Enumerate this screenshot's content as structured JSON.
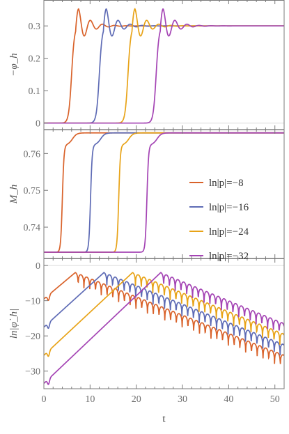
{
  "chart_data": [
    {
      "type": "line",
      "panel": "top",
      "ylabel": "−φ_h",
      "xlim": [
        0,
        52
      ],
      "ylim": [
        -0.02,
        0.38
      ],
      "yticks": [
        "0",
        "0.1",
        "0.2",
        "0.3"
      ],
      "ytick_values": [
        0,
        0.1,
        0.2,
        0.3
      ],
      "final_value": 0.3,
      "peak_value": 0.355,
      "series": [
        {
          "name": "ln|p|=−8",
          "transition_t": 6.0,
          "peak_t": 7.5,
          "color": "#d9622a"
        },
        {
          "name": "ln|p|=−16",
          "transition_t": 12.0,
          "peak_t": 13.5,
          "color": "#5e6bb5"
        },
        {
          "name": "ln|p|=−24",
          "transition_t": 18.2,
          "peak_t": 19.7,
          "color": "#e8a317"
        },
        {
          "name": "ln|p|=−32",
          "transition_t": 24.3,
          "peak_t": 25.8,
          "color": "#a444b4"
        }
      ]
    },
    {
      "type": "line",
      "panel": "middle",
      "ylabel": "M_h",
      "xlim": [
        0,
        52
      ],
      "ylim": [
        0.7315,
        0.7665
      ],
      "yticks": [
        "0.74",
        "0.75",
        "0.76"
      ],
      "ytick_values": [
        0.74,
        0.75,
        0.76
      ],
      "initial_value": 0.7332,
      "final_value": 0.7656,
      "series": [
        {
          "name": "ln|p|=−8",
          "transition_t": 3.6
        },
        {
          "name": "ln|p|=−16",
          "transition_t": 9.7
        },
        {
          "name": "ln|p|=−24",
          "transition_t": 15.8
        },
        {
          "name": "ln|p|=−32",
          "transition_t": 21.9
        }
      ]
    },
    {
      "type": "line",
      "panel": "bottom",
      "ylabel": "ln|φ̇_h|",
      "xlabel": "t",
      "xlim": [
        0,
        52
      ],
      "ylim": [
        -35,
        2
      ],
      "xticks": [
        "0",
        "10",
        "20",
        "30",
        "40",
        "50"
      ],
      "xtick_values": [
        0,
        10,
        20,
        30,
        40,
        50
      ],
      "yticks": [
        "0",
        "−10",
        "−20",
        "−30"
      ],
      "ytick_values": [
        0,
        -10,
        -20,
        -30
      ],
      "series": [
        {
          "name": "ln|p|=−8",
          "start_value": -9.5,
          "peak_t": 6.8,
          "peak_value": -2.0,
          "end_value": -25.5
        },
        {
          "name": "ln|p|=−16",
          "start_value": -17.5,
          "peak_t": 13.0,
          "peak_value": -2.0,
          "end_value": -22.5
        },
        {
          "name": "ln|p|=−24",
          "start_value": -25.5,
          "peak_t": 19.2,
          "peak_value": -2.0,
          "end_value": -19.5
        },
        {
          "name": "ln|p|=−32",
          "start_value": -33.5,
          "peak_t": 25.3,
          "peak_value": -2.0,
          "end_value": -16.5
        }
      ]
    }
  ],
  "legend": {
    "placement": "middle-right",
    "entries": [
      "ln|p|=−8",
      "ln|p|=−16",
      "ln|p|=−24",
      "ln|p|=−32"
    ]
  },
  "colors": {
    "orange": "#d9622a",
    "blue": "#5e6bb5",
    "gold": "#e8a317",
    "purple": "#a444b4",
    "frame": "#7a7a7a",
    "grid": "#dcdcdc"
  }
}
